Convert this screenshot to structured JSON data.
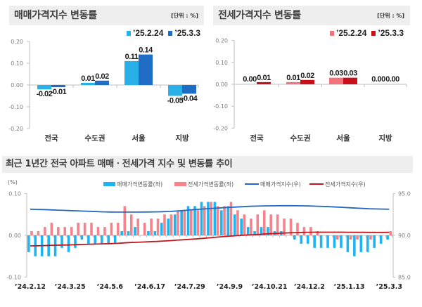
{
  "chart_data": [
    {
      "type": "bar",
      "title": "매매가격지수 변동률",
      "unit": "[단위 : %]",
      "categories": [
        "전국",
        "수도권",
        "서울",
        "지방"
      ],
      "series": [
        {
          "name": "’25.2.24",
          "color": "#29b0e8",
          "values": [
            -0.02,
            0.01,
            0.11,
            -0.05
          ],
          "labels": [
            "-0.02",
            "0.01",
            "0.11",
            "-0.05"
          ]
        },
        {
          "name": "’25.3.3",
          "color": "#1f6cc4",
          "values": [
            -0.01,
            0.02,
            0.14,
            -0.04
          ],
          "labels": [
            "-0.01",
            "0.02",
            "0.14",
            "-0.04"
          ]
        }
      ],
      "ylim": [
        -0.2,
        0.2
      ],
      "yticks": [
        0.2,
        0.1,
        0,
        -0.1,
        -0.2
      ],
      "ytick_labels": [
        "0.20",
        "0.10",
        "0.00",
        "-0.10",
        "-0.20"
      ],
      "xlabel": "",
      "ylabel": "",
      "legend": "top-right",
      "grid": false
    },
    {
      "type": "bar",
      "title": "전세가격지수 변동률",
      "unit": "[단위 : %]",
      "categories": [
        "전국",
        "수도권",
        "서울",
        "지방"
      ],
      "series": [
        {
          "name": "’25.2.24",
          "color": "#f2737b",
          "values": [
            0.0,
            0.01,
            0.03,
            0.0
          ],
          "labels": [
            "0.00",
            "0.01",
            "0.03",
            "0.00"
          ]
        },
        {
          "name": "’25.3.3",
          "color": "#c8101b",
          "values": [
            0.01,
            0.02,
            0.03,
            0.0
          ],
          "labels": [
            "0.01",
            "0.02",
            "0.03",
            "0.00"
          ]
        }
      ],
      "ylim": [
        -0.2,
        0.2
      ],
      "yticks": [
        0.2,
        0.1,
        0,
        -0.1,
        -0.2
      ],
      "ytick_labels": [
        "0.20",
        "0.10",
        "0.00",
        "-0.10",
        "-0.20"
      ],
      "xlabel": "",
      "ylabel": "",
      "legend": "top-right",
      "grid": false
    },
    {
      "type": "bar+line",
      "title": "최근 1년간 전국 아파트 매매ㆍ전세가격 지수 및 변동률 추이",
      "ylabel_left": "(%)",
      "ylim_left": [
        -0.1,
        0.1
      ],
      "yticks_left": [
        0.1,
        0,
        -0.1
      ],
      "ytick_labels_left": [
        "0.10",
        "0.00",
        "-0.10"
      ],
      "ylim_right": [
        85,
        95
      ],
      "yticks_right": [
        95,
        90,
        85
      ],
      "ytick_labels_right": [
        "95.0",
        "90.0",
        "85.0"
      ],
      "x_tick_labels": [
        "’24.2.12",
        "’24.3.25",
        "’24.5.6",
        "’24.6.17",
        "’24.7.29",
        "’24.9.9",
        "’24.10.21",
        "’24.12.2",
        "’25.1.13",
        "’25.3.3"
      ],
      "x_tick_index": [
        0,
        6,
        12,
        18,
        24,
        30,
        36,
        42,
        48,
        54
      ],
      "legend": "top-center",
      "grid": false,
      "series": [
        {
          "name": "매매가격변동률(좌)",
          "type": "bar",
          "axis": "left",
          "color": "#1cb5f1",
          "values": [
            -0.04,
            -0.05,
            -0.05,
            -0.05,
            -0.05,
            -0.03,
            -0.04,
            -0.03,
            -0.01,
            -0.02,
            -0.02,
            -0.02,
            -0.02,
            -0.02,
            0.01,
            0.01,
            0.02,
            0.0,
            0.01,
            0.01,
            0.03,
            0.04,
            0.05,
            0.06,
            0.07,
            0.07,
            0.08,
            0.08,
            0.08,
            0.06,
            0.07,
            0.05,
            0.04,
            0.02,
            0.01,
            0.02,
            0.02,
            0.01,
            0.01,
            0.0,
            -0.01,
            -0.02,
            -0.02,
            -0.03,
            -0.03,
            -0.03,
            -0.03,
            -0.03,
            -0.04,
            -0.05,
            -0.04,
            -0.04,
            -0.03,
            -0.02,
            -0.01
          ]
        },
        {
          "name": "전세가격변동률(좌)",
          "type": "bar",
          "axis": "left",
          "color": "#f5838b",
          "values": [
            0.01,
            0.01,
            0.02,
            0.03,
            0.02,
            0.02,
            0.02,
            0.03,
            0.03,
            0.03,
            0.02,
            0.02,
            0.03,
            0.03,
            0.07,
            0.05,
            0.04,
            0.03,
            0.04,
            0.04,
            0.05,
            0.05,
            0.06,
            0.06,
            0.06,
            0.06,
            0.07,
            0.08,
            0.07,
            0.07,
            0.08,
            0.06,
            0.05,
            0.04,
            0.05,
            0.06,
            0.05,
            0.05,
            0.04,
            0.04,
            0.03,
            0.02,
            0.02,
            0.01,
            0.0,
            0.0,
            -0.01,
            0.0,
            -0.01,
            -0.01,
            0.0,
            -0.01,
            0.0,
            0.0,
            0.01
          ]
        },
        {
          "name": "매매가격지수(우)",
          "type": "line",
          "axis": "right",
          "color": "#2468bf",
          "values": [
            93.13,
            93.1,
            93.08,
            93.05,
            93.02,
            92.99,
            92.96,
            92.93,
            92.9,
            92.87,
            92.84,
            92.81,
            92.79,
            92.78,
            92.78,
            92.78,
            92.78,
            92.79,
            92.8,
            92.81,
            92.83,
            92.86,
            92.91,
            92.97,
            93.03,
            93.09,
            93.15,
            93.2,
            93.25,
            93.3,
            93.35,
            93.39,
            93.43,
            93.47,
            93.5,
            93.52,
            93.53,
            93.54,
            93.55,
            93.55,
            93.54,
            93.53,
            93.51,
            93.49,
            93.46,
            93.43,
            93.39,
            93.35,
            93.3,
            93.26,
            93.22,
            93.18,
            93.16,
            93.14,
            93.13
          ]
        },
        {
          "name": "전세가격지수(우)",
          "type": "line",
          "axis": "right",
          "color": "#c2161d",
          "values": [
            88.74,
            88.75,
            88.77,
            88.8,
            88.82,
            88.84,
            88.86,
            88.89,
            88.91,
            88.94,
            88.96,
            88.98,
            89.01,
            89.03,
            89.09,
            89.14,
            89.17,
            89.2,
            89.24,
            89.27,
            89.32,
            89.36,
            89.42,
            89.47,
            89.52,
            89.58,
            89.64,
            89.71,
            89.78,
            89.84,
            89.91,
            89.96,
            90.01,
            90.05,
            90.09,
            90.14,
            90.19,
            90.23,
            90.27,
            90.3,
            90.33,
            90.35,
            90.37,
            90.38,
            90.38,
            90.38,
            90.38,
            90.38,
            90.37,
            90.36,
            90.36,
            90.35,
            90.35,
            90.35,
            90.36
          ]
        }
      ]
    }
  ]
}
